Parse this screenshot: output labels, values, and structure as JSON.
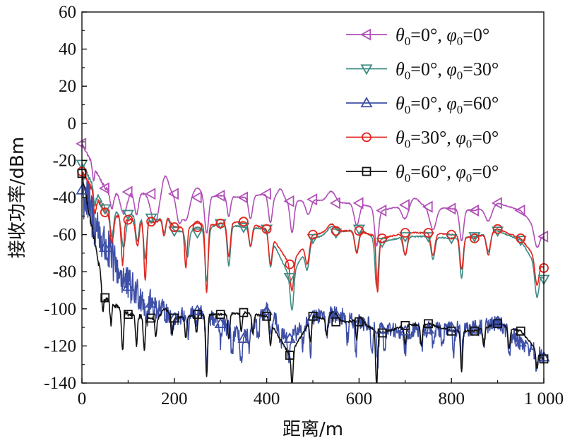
{
  "chart_data": {
    "type": "line",
    "title": "",
    "xlabel": "距离/m",
    "ylabel": "接收功率/dBm",
    "xlim": [
      0,
      1000
    ],
    "ylim": [
      -140,
      60
    ],
    "x_ticks": [
      0,
      200,
      400,
      600,
      800,
      1000
    ],
    "x_tick_labels": [
      "0",
      "200",
      "400",
      "600",
      "800",
      "1 000"
    ],
    "y_ticks": [
      60,
      40,
      20,
      0,
      -20,
      -40,
      -60,
      -80,
      -100,
      -120,
      -140
    ],
    "y_tick_labels": [
      "60",
      "40",
      "20",
      "0",
      "-20",
      "-40",
      "-60",
      "-80",
      "-100",
      "-120",
      "-140"
    ],
    "grid": false,
    "legend_position": "top-right",
    "series": [
      {
        "name": "θ0=0°, φ0=0°",
        "legend": {
          "t_sym": "θ",
          "t_sub": "0",
          "t_val": "=0°, ",
          "p_sym": "φ",
          "p_sub": "0",
          "p_val": "=0°"
        },
        "color": "#b04fb6",
        "marker": "triangle-left",
        "marker_x": [
          0,
          50,
          100,
          150,
          200,
          250,
          300,
          350,
          400,
          450,
          500,
          550,
          600,
          650,
          700,
          750,
          800,
          850,
          900,
          950,
          1000
        ],
        "marker_y": [
          -11,
          -35,
          -37,
          -38,
          -38,
          -40,
          -39,
          -40,
          -38,
          -42,
          -41,
          -43,
          -43,
          -47,
          -44,
          -45,
          -46,
          -47,
          -43,
          -47,
          -61
        ],
        "dips": [
          [
            25,
            3,
            8
          ],
          [
            65,
            6,
            10
          ],
          [
            90,
            10,
            12
          ],
          [
            118,
            6,
            12
          ],
          [
            158,
            12,
            16
          ],
          [
            210,
            8,
            14
          ],
          [
            225,
            10,
            13
          ],
          [
            270,
            6,
            20
          ],
          [
            318,
            5,
            11
          ],
          [
            365,
            6,
            12
          ],
          [
            408,
            6,
            15
          ],
          [
            455,
            6,
            17
          ],
          [
            490,
            8,
            8
          ],
          [
            595,
            8,
            12
          ],
          [
            638,
            6,
            20
          ],
          [
            700,
            10,
            8
          ],
          [
            760,
            10,
            12
          ],
          [
            822,
            6,
            17
          ],
          [
            880,
            10,
            8
          ],
          [
            985,
            8,
            10
          ]
        ],
        "bumps": [
          [
            180,
            10,
            10
          ],
          [
            250,
            12,
            5
          ],
          [
            430,
            8,
            5
          ],
          [
            540,
            12,
            6
          ],
          [
            720,
            15,
            4
          ]
        ],
        "noise": 0.25
      },
      {
        "name": "θ0=0°, φ0=30°",
        "legend": {
          "t_sym": "θ",
          "t_sub": "0",
          "t_val": "=0°, ",
          "p_sym": "φ",
          "p_sub": "0",
          "p_val": "=30°"
        },
        "color": "#3f8b84",
        "marker": "triangle-down",
        "marker_x": [
          0,
          50,
          100,
          150,
          200,
          250,
          300,
          350,
          400,
          450,
          500,
          550,
          600,
          650,
          700,
          750,
          800,
          850,
          900,
          950,
          1000
        ],
        "marker_y": [
          -22,
          -46,
          -49,
          -51,
          -58,
          -59,
          -54,
          -56,
          -57,
          -83,
          -62,
          -59,
          -57,
          -64,
          -61,
          -61,
          -62,
          -61,
          -58,
          -63,
          -84
        ],
        "dips": [
          [
            28,
            4,
            8
          ],
          [
            65,
            5,
            14
          ],
          [
            90,
            7,
            18
          ],
          [
            120,
            5,
            14
          ],
          [
            137,
            5,
            22
          ],
          [
            178,
            5,
            10
          ],
          [
            228,
            5,
            14
          ],
          [
            270,
            5,
            28
          ],
          [
            318,
            5,
            22
          ],
          [
            365,
            5,
            10
          ],
          [
            408,
            5,
            16
          ],
          [
            455,
            5,
            20
          ],
          [
            488,
            6,
            12
          ],
          [
            595,
            6,
            12
          ],
          [
            638,
            5,
            26
          ],
          [
            700,
            6,
            10
          ],
          [
            760,
            6,
            12
          ],
          [
            822,
            5,
            22
          ],
          [
            880,
            6,
            10
          ],
          [
            985,
            6,
            16
          ]
        ],
        "bumps": [
          [
            180,
            12,
            6
          ],
          [
            250,
            10,
            3
          ],
          [
            540,
            12,
            4
          ]
        ],
        "noise": 0.35
      },
      {
        "name": "θ0=0°, φ0=60°",
        "legend": {
          "t_sym": "θ",
          "t_sub": "0",
          "t_val": "=0°, ",
          "p_sym": "φ",
          "p_sub": "0",
          "p_val": "=60°"
        },
        "color": "#3e4fa6",
        "marker": "triangle-up",
        "marker_x": [
          0,
          50,
          100,
          150,
          200,
          250,
          300,
          350,
          400,
          450,
          500,
          550,
          600,
          650,
          700,
          750,
          800,
          850,
          900,
          950,
          1000
        ],
        "marker_y": [
          -36,
          -67,
          -88,
          -97,
          -105,
          -101,
          -108,
          -116,
          -101,
          -116,
          -104,
          -103,
          -107,
          -111,
          -112,
          -111,
          -110,
          -111,
          -107,
          -118,
          -126
        ],
        "dips": [
          [
            140,
            4,
            10
          ],
          [
            195,
            3,
            8
          ],
          [
            230,
            3,
            10
          ],
          [
            248,
            3,
            8
          ],
          [
            270,
            3,
            28
          ],
          [
            300,
            3,
            10
          ],
          [
            325,
            3,
            12
          ],
          [
            345,
            3,
            14
          ],
          [
            362,
            3,
            10
          ],
          [
            382,
            3,
            10
          ],
          [
            410,
            3,
            10
          ],
          [
            430,
            3,
            10
          ],
          [
            448,
            3,
            12
          ],
          [
            478,
            3,
            10
          ],
          [
            495,
            3,
            18
          ],
          [
            530,
            3,
            12
          ],
          [
            575,
            3,
            12
          ],
          [
            593,
            3,
            20
          ],
          [
            628,
            3,
            14
          ],
          [
            640,
            3,
            20
          ],
          [
            655,
            3,
            10
          ],
          [
            700,
            3,
            10
          ],
          [
            735,
            3,
            12
          ],
          [
            760,
            3,
            10
          ],
          [
            780,
            3,
            12
          ],
          [
            805,
            3,
            12
          ],
          [
            822,
            3,
            16
          ],
          [
            870,
            3,
            10
          ],
          [
            925,
            3,
            12
          ],
          [
            985,
            3,
            10
          ]
        ],
        "bumps": [],
        "noise": 4.5
      },
      {
        "name": "θ0=30°, φ0=0°",
        "legend": {
          "t_sym": "θ",
          "t_sub": "0",
          "t_val": "=30°, ",
          "p_sym": "φ",
          "p_sub": "0",
          "p_val": "=0°"
        },
        "color": "#e0261f",
        "marker": "circle",
        "marker_x": [
          0,
          50,
          100,
          150,
          200,
          250,
          300,
          350,
          400,
          450,
          500,
          550,
          600,
          650,
          700,
          750,
          800,
          850,
          900,
          950,
          1000
        ],
        "marker_y": [
          -26,
          -48,
          -52,
          -53,
          -56,
          -56,
          -54,
          -53,
          -57,
          -76,
          -60,
          -58,
          -58,
          -62,
          -59,
          -59,
          -60,
          -62,
          -57,
          -62,
          -78
        ],
        "dips": [
          [
            28,
            4,
            10
          ],
          [
            65,
            5,
            16
          ],
          [
            88,
            4,
            25
          ],
          [
            120,
            5,
            14
          ],
          [
            137,
            4,
            32
          ],
          [
            178,
            5,
            12
          ],
          [
            225,
            4,
            22
          ],
          [
            270,
            4,
            36
          ],
          [
            318,
            5,
            18
          ],
          [
            365,
            5,
            12
          ],
          [
            408,
            5,
            16
          ],
          [
            455,
            5,
            16
          ],
          [
            488,
            6,
            12
          ],
          [
            595,
            6,
            12
          ],
          [
            640,
            4,
            30
          ],
          [
            700,
            6,
            12
          ],
          [
            760,
            6,
            12
          ],
          [
            822,
            5,
            18
          ],
          [
            880,
            6,
            12
          ],
          [
            985,
            6,
            14
          ]
        ],
        "bumps": [
          [
            180,
            12,
            6
          ],
          [
            250,
            10,
            3
          ],
          [
            540,
            12,
            4
          ]
        ],
        "noise": 0.35
      },
      {
        "name": "θ0=60°, φ0=0°",
        "legend": {
          "t_sym": "θ",
          "t_sub": "0",
          "t_val": "=60°, ",
          "p_sym": "φ",
          "p_sub": "0",
          "p_val": "=0°"
        },
        "color": "#111111",
        "marker": "square",
        "marker_x": [
          0,
          50,
          100,
          150,
          200,
          250,
          300,
          350,
          400,
          450,
          500,
          550,
          600,
          650,
          700,
          750,
          800,
          850,
          900,
          950,
          1000
        ],
        "marker_y": [
          -27,
          -94,
          -103,
          -105,
          -105,
          -103,
          -103,
          -102,
          -104,
          -125,
          -104,
          -107,
          -107,
          -113,
          -109,
          -108,
          -112,
          -112,
          -108,
          -112,
          -127
        ],
        "dips": [
          [
            45,
            3,
            14
          ],
          [
            63,
            3,
            12
          ],
          [
            88,
            3,
            22
          ],
          [
            118,
            3,
            16
          ],
          [
            135,
            3,
            18
          ],
          [
            160,
            3,
            10
          ],
          [
            195,
            3,
            10
          ],
          [
            225,
            3,
            12
          ],
          [
            248,
            3,
            10
          ],
          [
            270,
            3,
            34
          ],
          [
            318,
            3,
            14
          ],
          [
            345,
            3,
            10
          ],
          [
            370,
            3,
            10
          ],
          [
            408,
            3,
            12
          ],
          [
            455,
            3,
            18
          ],
          [
            495,
            3,
            12
          ],
          [
            530,
            3,
            10
          ],
          [
            595,
            3,
            12
          ],
          [
            638,
            3,
            30
          ],
          [
            700,
            3,
            10
          ],
          [
            735,
            3,
            12
          ],
          [
            822,
            3,
            22
          ],
          [
            870,
            3,
            10
          ],
          [
            925,
            3,
            12
          ],
          [
            985,
            3,
            10
          ]
        ],
        "bumps": [
          [
            180,
            10,
            5
          ],
          [
            545,
            12,
            5
          ],
          [
            600,
            10,
            3
          ]
        ],
        "noise": 0.6
      }
    ]
  }
}
